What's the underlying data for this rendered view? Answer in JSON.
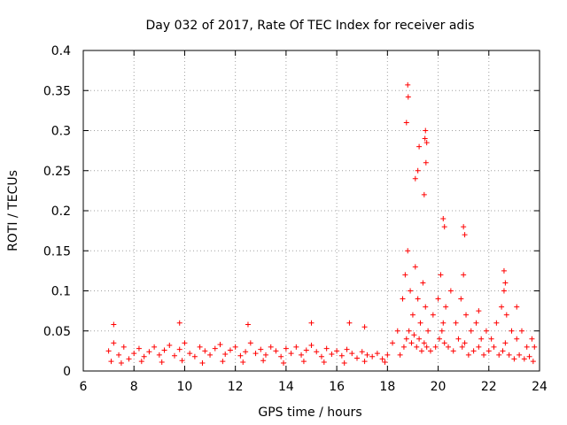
{
  "chart_data": {
    "type": "scatter",
    "title": "Day 032 of 2017, Rate Of TEC Index for receiver adis",
    "xlabel": "GPS time / hours",
    "ylabel": "ROTI / TECUs",
    "xlim": [
      6,
      24
    ],
    "ylim": [
      0,
      0.4
    ],
    "xticks": [
      6,
      8,
      10,
      12,
      14,
      16,
      18,
      20,
      22,
      24
    ],
    "xtick_labels": [
      "6",
      "8",
      "10",
      "12",
      "14",
      "16",
      "18",
      "20",
      "22",
      "24"
    ],
    "yticks": [
      0,
      0.05,
      0.1,
      0.15,
      0.2,
      0.25,
      0.3,
      0.35,
      0.4
    ],
    "ytick_labels": [
      "0",
      "0.05",
      "0.1",
      "0.15",
      "0.2",
      "0.25",
      "0.3",
      "0.35",
      "0.4"
    ],
    "grid": true,
    "marker": "+",
    "marker_color": "#ff0000",
    "series": [
      {
        "name": "ROTI",
        "x": [
          7.0,
          7.2,
          7.4,
          7.6,
          7.8,
          8.0,
          8.2,
          8.4,
          8.6,
          8.8,
          9.0,
          9.2,
          9.4,
          9.6,
          9.8,
          10.0,
          10.2,
          10.4,
          10.6,
          10.8,
          11.0,
          11.2,
          11.4,
          11.6,
          11.8,
          12.0,
          12.2,
          12.4,
          12.6,
          12.8,
          13.0,
          13.2,
          13.4,
          13.6,
          13.8,
          14.0,
          14.2,
          14.4,
          14.6,
          14.8,
          15.0,
          15.2,
          15.4,
          15.6,
          15.8,
          16.0,
          16.2,
          16.4,
          16.6,
          16.8,
          17.0,
          17.2,
          17.4,
          17.6,
          17.8,
          18.0,
          18.2,
          18.4,
          18.6,
          18.7,
          18.8,
          18.9,
          19.0,
          19.1,
          19.2,
          19.3,
          19.4,
          19.5,
          19.6,
          19.8,
          20.0,
          20.1,
          20.2,
          20.3,
          20.5,
          20.7,
          20.9,
          21.0,
          21.1,
          21.3,
          21.5,
          21.7,
          21.9,
          22.1,
          22.3,
          22.5,
          22.6,
          22.7,
          22.9,
          23.1,
          23.3,
          23.5,
          23.7,
          23.8,
          7.1,
          7.5,
          8.3,
          9.1,
          9.9,
          10.7,
          11.5,
          12.3,
          13.1,
          13.9,
          14.7,
          15.5,
          16.3,
          17.1,
          17.9,
          18.5,
          18.65,
          18.75,
          18.85,
          18.95,
          19.05,
          19.15,
          19.25,
          19.35,
          19.45,
          19.55,
          19.7,
          19.9,
          20.05,
          20.15,
          20.25,
          20.4,
          20.6,
          20.8,
          20.95,
          21.05,
          21.2,
          21.4,
          21.6,
          21.8,
          22.0,
          22.2,
          22.4,
          22.55,
          22.65,
          22.8,
          23.0,
          23.2,
          23.4,
          23.6,
          23.75,
          7.2,
          9.8,
          12.5,
          15.0,
          16.5,
          17.1,
          18.8,
          18.82,
          18.75,
          19.5,
          19.48,
          19.45,
          19.55,
          19.25,
          19.1,
          19.2,
          19.52,
          20.2,
          20.25,
          21.0,
          21.05,
          22.6,
          22.65,
          23.1,
          21.6
        ],
        "y": [
          0.025,
          0.035,
          0.02,
          0.03,
          0.015,
          0.022,
          0.028,
          0.018,
          0.024,
          0.03,
          0.02,
          0.026,
          0.032,
          0.019,
          0.027,
          0.035,
          0.022,
          0.018,
          0.03,
          0.025,
          0.02,
          0.028,
          0.033,
          0.021,
          0.026,
          0.03,
          0.019,
          0.024,
          0.035,
          0.022,
          0.027,
          0.02,
          0.03,
          0.025,
          0.018,
          0.028,
          0.022,
          0.03,
          0.02,
          0.026,
          0.032,
          0.024,
          0.018,
          0.028,
          0.021,
          0.025,
          0.019,
          0.027,
          0.022,
          0.016,
          0.024,
          0.02,
          0.018,
          0.022,
          0.015,
          0.02,
          0.035,
          0.05,
          0.09,
          0.12,
          0.15,
          0.1,
          0.07,
          0.13,
          0.09,
          0.06,
          0.11,
          0.08,
          0.05,
          0.07,
          0.09,
          0.12,
          0.06,
          0.08,
          0.1,
          0.06,
          0.09,
          0.12,
          0.07,
          0.05,
          0.06,
          0.04,
          0.05,
          0.04,
          0.06,
          0.08,
          0.1,
          0.07,
          0.05,
          0.04,
          0.05,
          0.03,
          0.04,
          0.03,
          0.012,
          0.01,
          0.012,
          0.011,
          0.013,
          0.01,
          0.012,
          0.011,
          0.013,
          0.01,
          0.012,
          0.011,
          0.01,
          0.012,
          0.011,
          0.02,
          0.03,
          0.04,
          0.05,
          0.035,
          0.045,
          0.03,
          0.04,
          0.025,
          0.035,
          0.03,
          0.025,
          0.03,
          0.04,
          0.05,
          0.035,
          0.03,
          0.025,
          0.04,
          0.03,
          0.035,
          0.02,
          0.025,
          0.03,
          0.02,
          0.025,
          0.03,
          0.02,
          0.025,
          0.035,
          0.02,
          0.015,
          0.02,
          0.015,
          0.018,
          0.012,
          0.058,
          0.06,
          0.058,
          0.06,
          0.06,
          0.055,
          0.357,
          0.342,
          0.31,
          0.3,
          0.29,
          0.22,
          0.285,
          0.28,
          0.24,
          0.25,
          0.26,
          0.19,
          0.18,
          0.18,
          0.17,
          0.125,
          0.11,
          0.08,
          0.075
        ]
      }
    ]
  }
}
